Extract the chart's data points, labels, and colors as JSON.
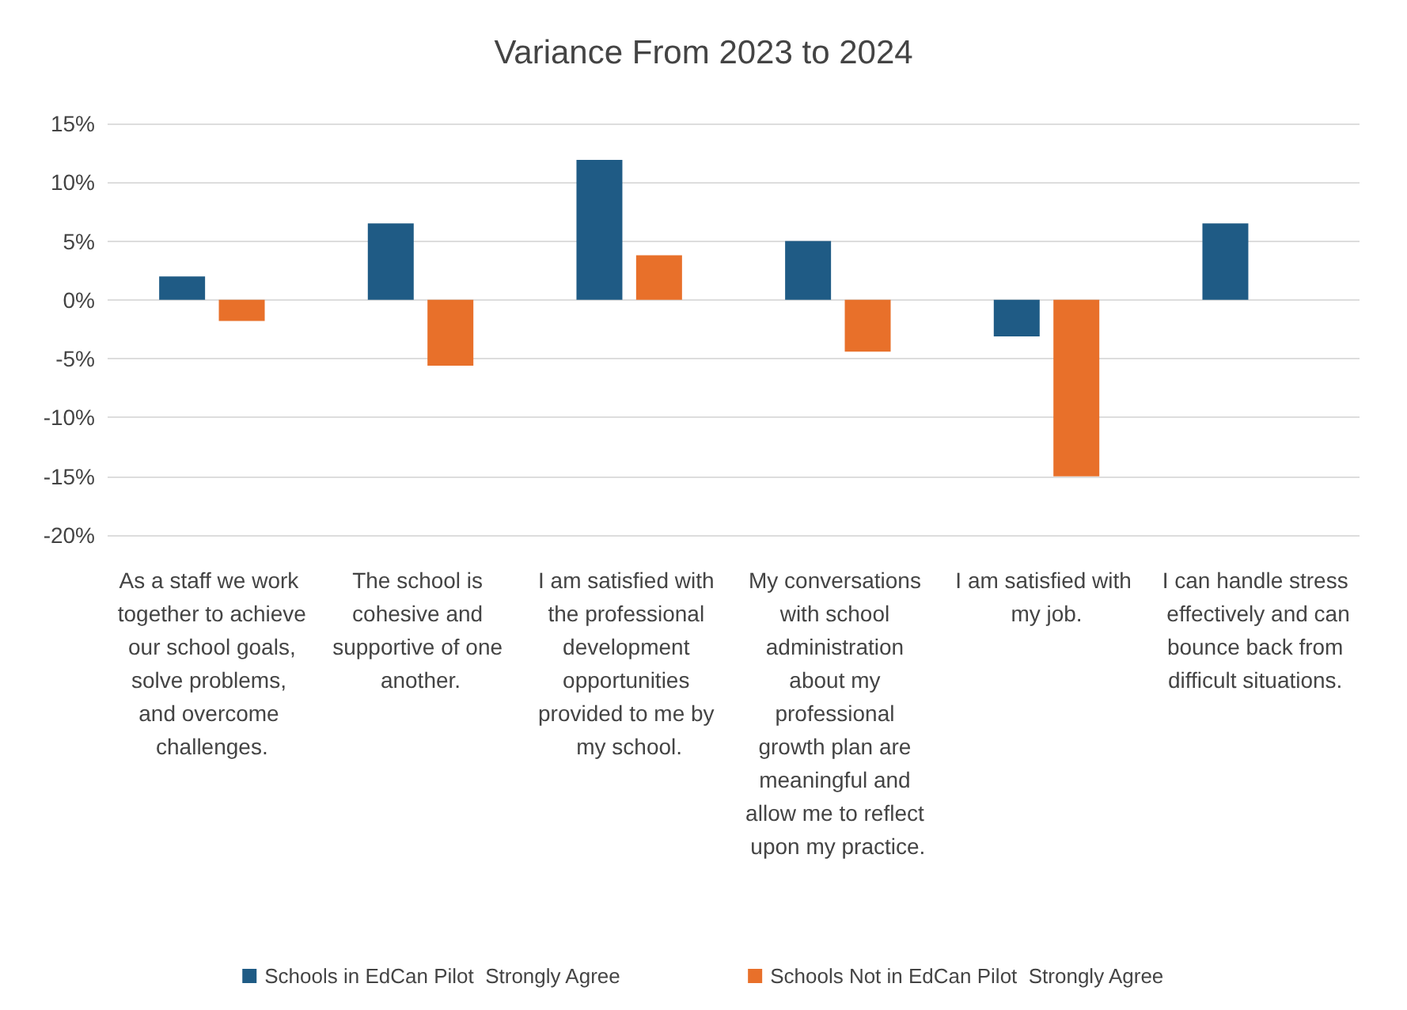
{
  "chart_data": {
    "type": "bar",
    "title": "Variance From 2023 to 2024",
    "categories": [
      "As a staff we work together to achieve our school goals, solve problems, and overcome challenges.",
      "The school is cohesive and supportive of one another.",
      "I am satisfied with the professional development opportunities provided to me by my school.",
      "My conversations with school administration about my professional growth plan are meaningful and allow me to reflect upon my practice.",
      "I am satisfied with my job.",
      "I can handle stress effectively and can bounce back from difficult situations."
    ],
    "series": [
      {
        "name": "Schools in EdCan Pilot  Strongly Agree",
        "color": "#1f5b85",
        "values": [
          2.0,
          6.5,
          11.9,
          5.0,
          -3.1,
          6.5
        ]
      },
      {
        "name": "Schools Not in EdCan Pilot  Strongly Agree",
        "color": "#e8702a",
        "values": [
          -1.8,
          -5.6,
          3.8,
          -4.4,
          -15.0,
          null
        ]
      }
    ],
    "ylim": [
      -20,
      15
    ],
    "yticks": [
      {
        "value": -20,
        "label": "-20%"
      },
      {
        "value": -15,
        "label": "-15%"
      },
      {
        "value": -10,
        "label": "-10%"
      },
      {
        "value": -5,
        "label": "-5%"
      },
      {
        "value": 0,
        "label": "0%"
      },
      {
        "value": 5,
        "label": "5%"
      },
      {
        "value": 10,
        "label": "10%"
      },
      {
        "value": 15,
        "label": "15%"
      }
    ],
    "grid": "y",
    "legend": "bottom"
  }
}
